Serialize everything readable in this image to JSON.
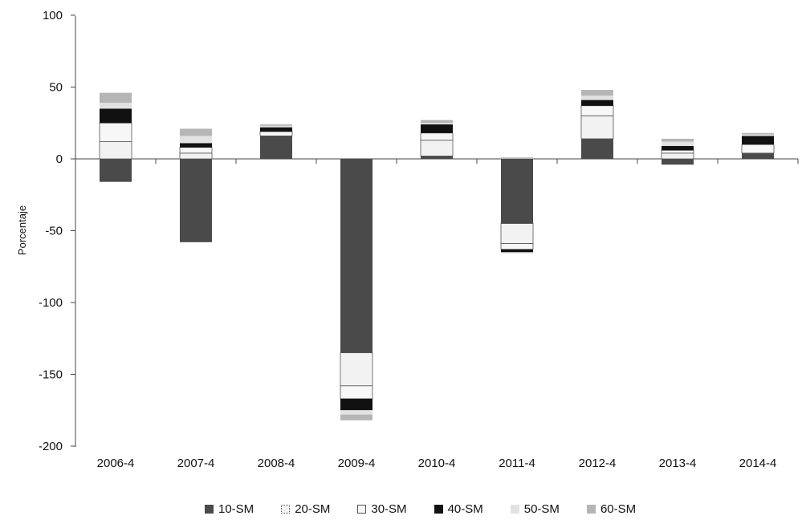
{
  "chart_data": {
    "type": "bar",
    "stacked": true,
    "ylabel": "Porcentaje",
    "xlabel": "",
    "ylim": [
      -200,
      100
    ],
    "yticks": [
      100,
      50,
      0,
      -50,
      -100,
      -150,
      -200
    ],
    "categories": [
      "2006-4",
      "2007-4",
      "2008-4",
      "2009-4",
      "2010-4",
      "2011-4",
      "2012-4",
      "2013-4",
      "2014-4"
    ],
    "series": [
      {
        "name": "10-SM",
        "color": "#4a4a4a",
        "values": [
          -16,
          -58,
          16,
          -135,
          2,
          -45,
          14,
          -4,
          4
        ]
      },
      {
        "name": "20-SM",
        "color": "#f2f2f2",
        "values": [
          12,
          4,
          0,
          -23,
          11,
          -14,
          16,
          4,
          0
        ]
      },
      {
        "name": "30-SM",
        "color": "#f7f7f7",
        "values": [
          13,
          4,
          3,
          -9,
          5,
          -4,
          7,
          2,
          6
        ]
      },
      {
        "name": "40-SM",
        "color": "#111111",
        "values": [
          10,
          3,
          3,
          -8,
          6,
          -2,
          4,
          3,
          6
        ]
      },
      {
        "name": "50-SM",
        "color": "#e2e2e2",
        "values": [
          4,
          5,
          1,
          -3,
          1,
          -1,
          3,
          3,
          1
        ]
      },
      {
        "name": "60-SM",
        "color": "#b5b5b5",
        "values": [
          7,
          5,
          1,
          -4,
          2,
          1,
          4,
          2,
          1
        ]
      }
    ],
    "legend_position": "bottom",
    "grid": false
  }
}
